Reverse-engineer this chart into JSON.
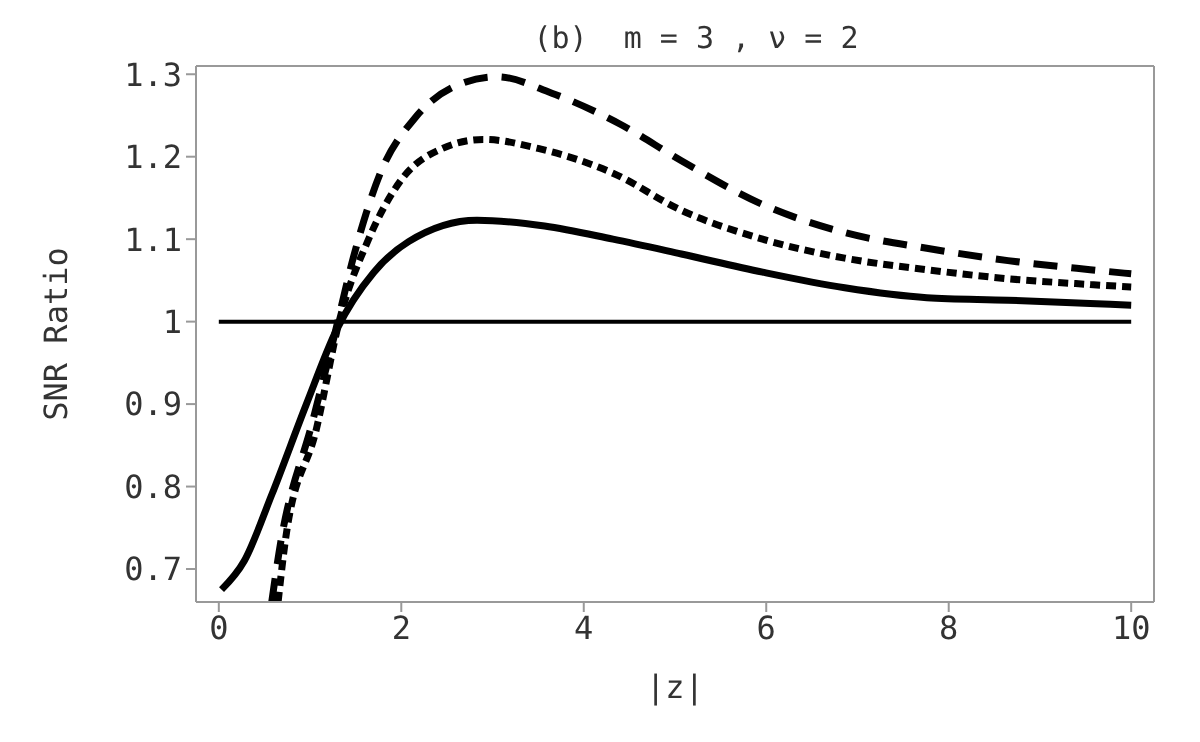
{
  "chart_data": {
    "type": "line",
    "title": "(b)  m = 3 , ν = 2",
    "xlabel": "|z|",
    "ylabel": "SNR Ratio",
    "xlim": [
      -0.25,
      10.25
    ],
    "xticks": [
      0,
      2,
      4,
      6,
      8,
      10
    ],
    "ylim": [
      0.66,
      1.31
    ],
    "yticks": [
      0.7,
      0.8,
      0.9,
      1,
      1.1,
      1.2,
      1.3
    ],
    "marker": "none",
    "series": [
      {
        "color": "#000000",
        "line_style": "solid",
        "x": [
          0,
          10
        ],
        "values": [
          1,
          1
        ]
      },
      {
        "color": "#000000",
        "line_style": "solid",
        "x": [
          0.03,
          0.28,
          0.58,
          0.96,
          1.29,
          1.7,
          2.08,
          2.83,
          3.57,
          4.32,
          5.07,
          5.96,
          6.86,
          7.76,
          8.65,
          9.55,
          10
        ],
        "values": [
          0.675,
          0.71,
          0.79,
          0.9,
          0.99,
          1.06,
          1.097,
          1.123,
          1.116,
          1.1,
          1.082,
          1.06,
          1.041,
          1.029,
          1.026,
          1.022,
          1.02
        ]
      },
      {
        "color": "#000000",
        "line_style": "dotted",
        "x": [
          0.65,
          0.73,
          1.07,
          1.33,
          1.63,
          2.0,
          2.45,
          2.9,
          3.5,
          4.32,
          5.07,
          5.96,
          6.86,
          7.76,
          8.65,
          9.55,
          10
        ],
        "values": [
          0.66,
          0.735,
          0.87,
          1.005,
          1.097,
          1.172,
          1.21,
          1.221,
          1.21,
          1.18,
          1.135,
          1.1,
          1.077,
          1.063,
          1.052,
          1.045,
          1.042
        ]
      },
      {
        "color": "#000000",
        "line_style": "dashed",
        "x": [
          0.58,
          0.66,
          1.03,
          1.26,
          1.48,
          1.77,
          2.15,
          2.6,
          3.05,
          3.65,
          4.39,
          5.07,
          5.96,
          6.86,
          7.76,
          8.65,
          9.55,
          10
        ],
        "values": [
          0.66,
          0.72,
          0.88,
          0.98,
          1.08,
          1.18,
          1.247,
          1.286,
          1.297,
          1.277,
          1.24,
          1.195,
          1.142,
          1.108,
          1.089,
          1.074,
          1.063,
          1.058
        ]
      }
    ]
  }
}
